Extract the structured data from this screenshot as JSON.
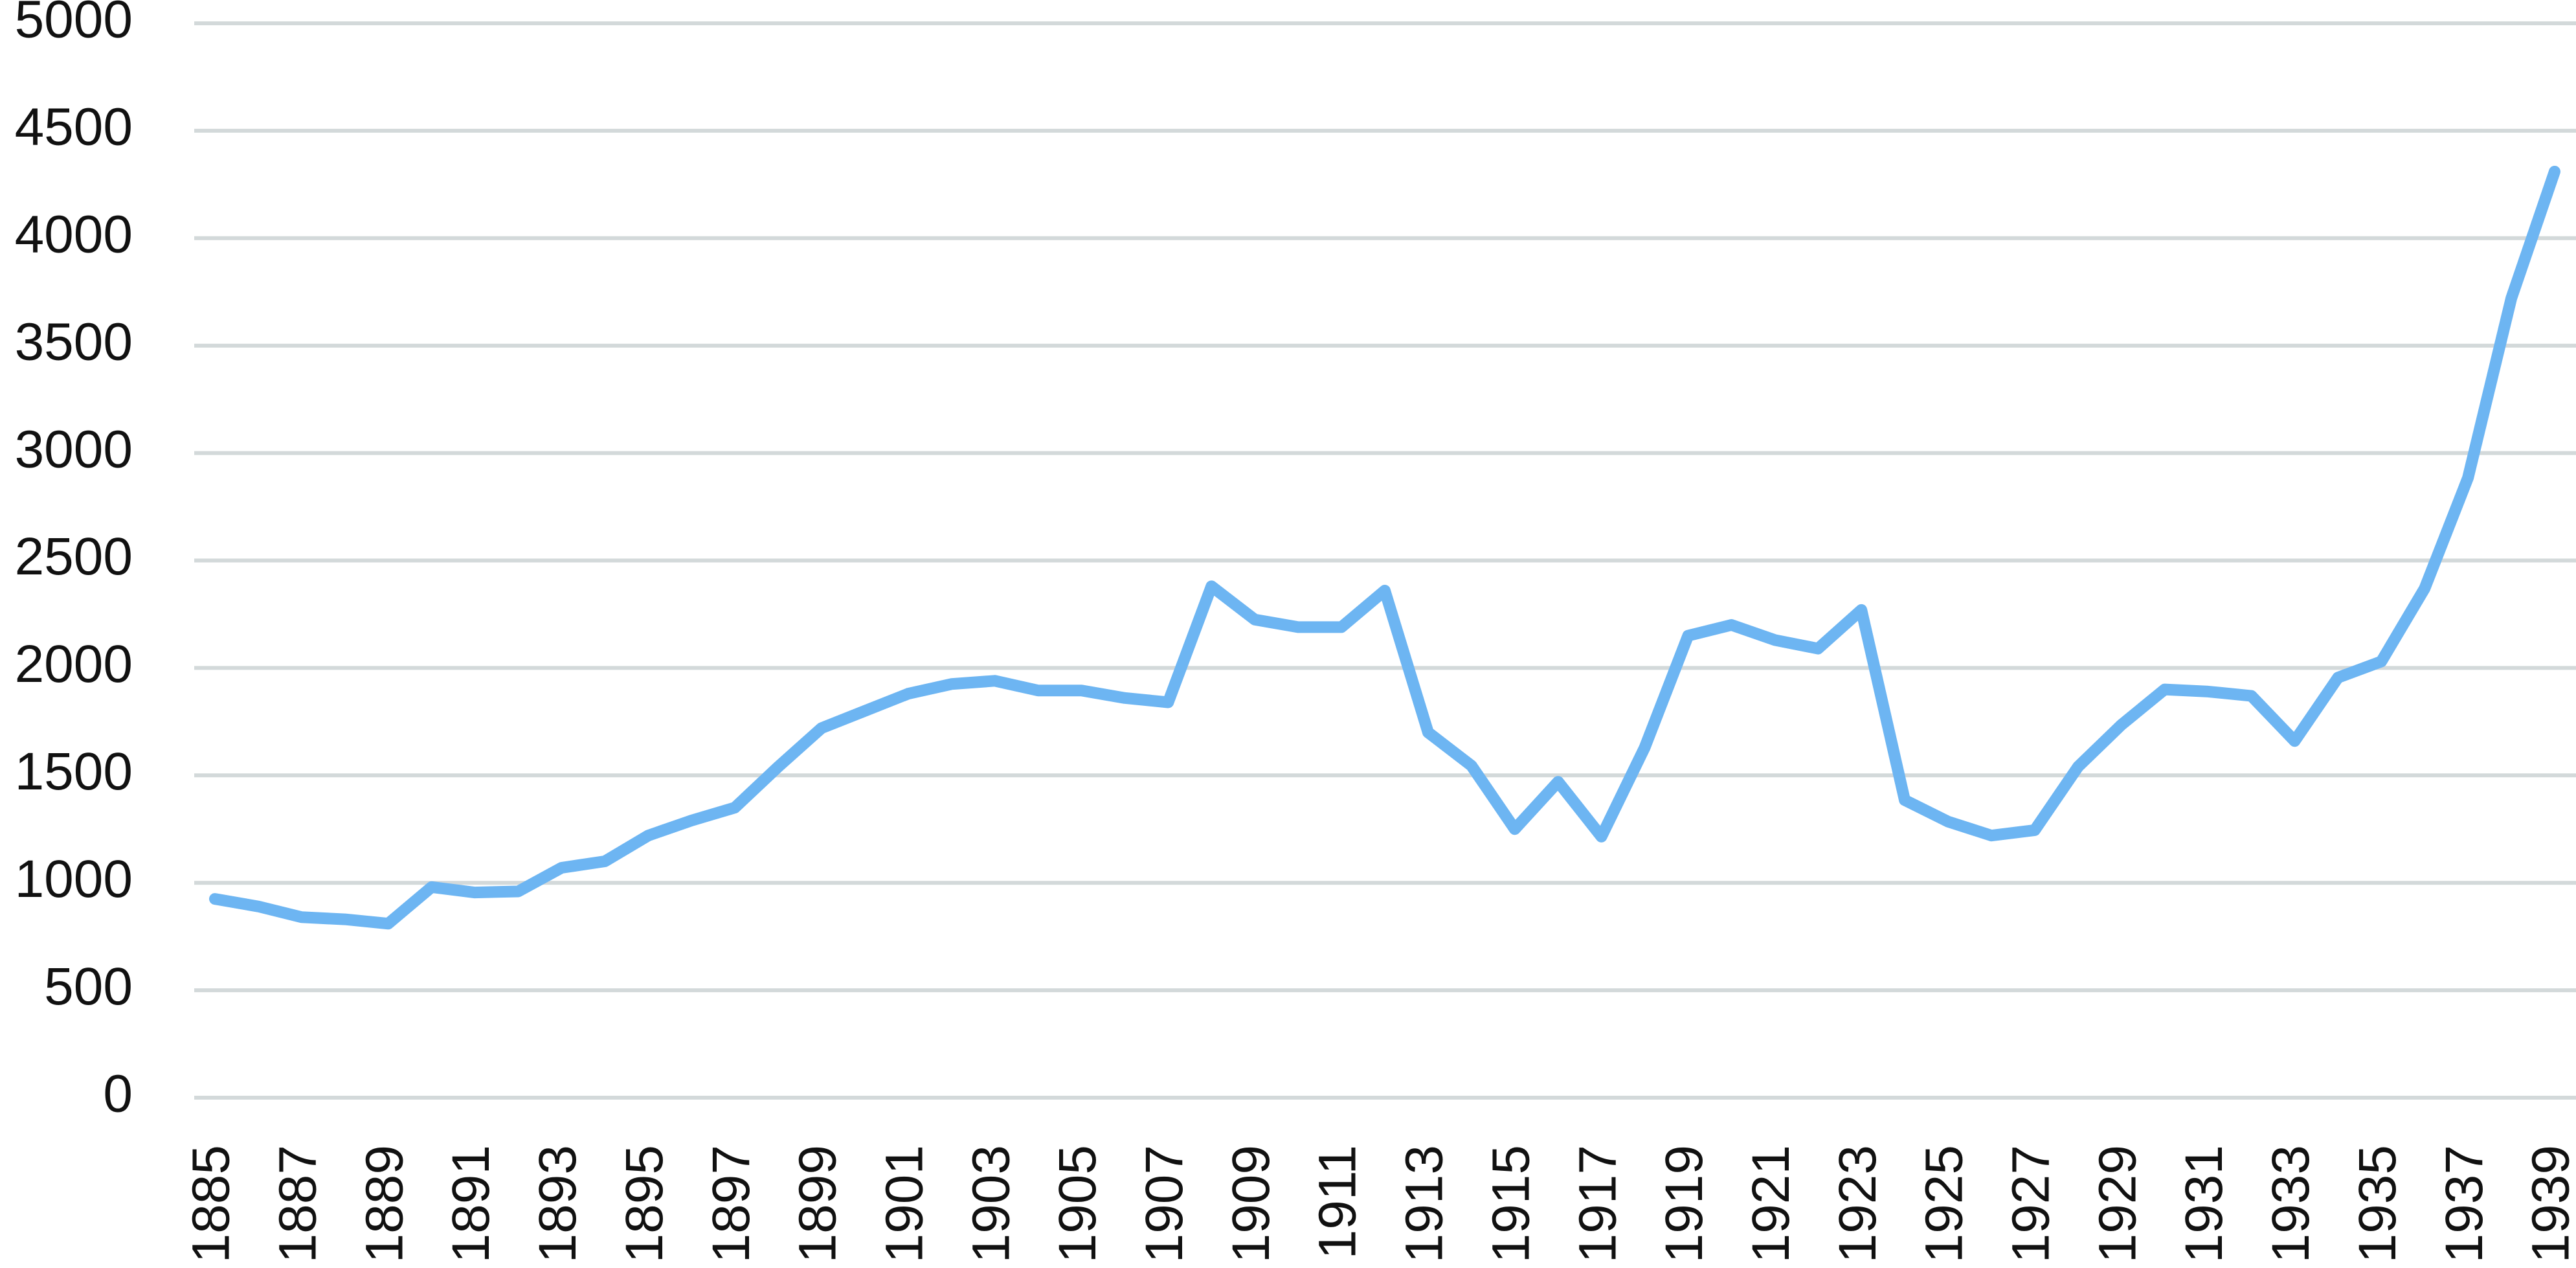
{
  "chart_data": {
    "type": "line",
    "x": [
      1885,
      1886,
      1887,
      1888,
      1889,
      1890,
      1891,
      1892,
      1893,
      1894,
      1895,
      1896,
      1897,
      1898,
      1899,
      1900,
      1901,
      1902,
      1903,
      1904,
      1905,
      1906,
      1907,
      1908,
      1909,
      1910,
      1911,
      1912,
      1913,
      1914,
      1915,
      1916,
      1917,
      1918,
      1919,
      1920,
      1921,
      1922,
      1923,
      1924,
      1925,
      1926,
      1927,
      1928,
      1929,
      1930,
      1931,
      1932,
      1933,
      1934,
      1935,
      1936,
      1937,
      1938,
      1939
    ],
    "series": [
      {
        "color": "#6db5f2",
        "values": [
          925,
          890,
          840,
          830,
          810,
          980,
          955,
          960,
          1070,
          1100,
          1220,
          1290,
          1350,
          1540,
          1720,
          1800,
          1880,
          1925,
          1940,
          1895,
          1895,
          1860,
          1840,
          2380,
          2225,
          2190,
          2190,
          2360,
          1700,
          1545,
          1250,
          1470,
          1215,
          1630,
          2150,
          2200,
          2130,
          2090,
          2270,
          1385,
          1285,
          1220,
          1245,
          1540,
          1735,
          1900,
          1890,
          1870,
          1660,
          1955,
          2030,
          2370,
          2885,
          3720,
          4310
        ]
      }
    ],
    "xlim": [
      1885,
      1939
    ],
    "xticks": [
      1885,
      1887,
      1889,
      1891,
      1893,
      1895,
      1897,
      1899,
      1901,
      1903,
      1905,
      1907,
      1909,
      1911,
      1913,
      1915,
      1917,
      1919,
      1921,
      1923,
      1925,
      1927,
      1929,
      1931,
      1933,
      1935,
      1937,
      1939
    ],
    "ylim": [
      0,
      5000
    ],
    "yticks": [
      0,
      500,
      1000,
      1500,
      2000,
      2500,
      3000,
      3500,
      4000,
      4500,
      5000
    ],
    "grid": true
  }
}
